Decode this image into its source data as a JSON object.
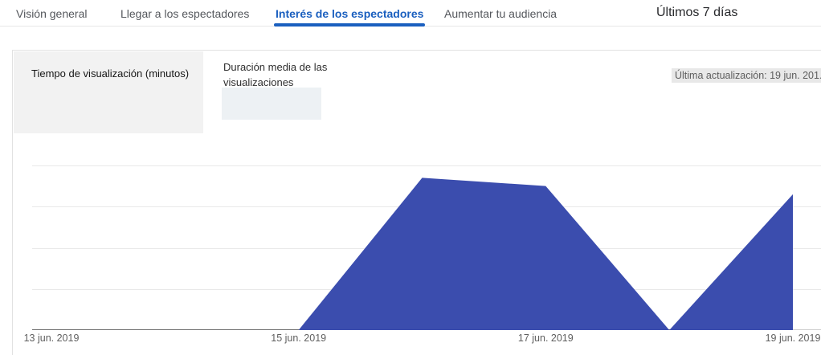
{
  "tabs": {
    "items": [
      {
        "label": "Visión general",
        "active": false
      },
      {
        "label": "Llegar a los espectadores",
        "active": false
      },
      {
        "label": "Interés de los espectadores",
        "active": true
      },
      {
        "label": "Aumentar tu audiencia",
        "active": false
      }
    ],
    "date_range": "Últimos 7 días"
  },
  "metrics": {
    "primary_label": "Tiempo de visualización (minutos)",
    "secondary_label": "Duración media de las visualizaciones",
    "last_update": "Última actualización: 19 jun. 201."
  },
  "colors": {
    "accent_blue": "#1a5fbf",
    "area_fill": "#3b4dae",
    "gridline": "#e9e9e9",
    "axis_line": "#6f6f6f",
    "selected_metric_bg": "#f2f2f2",
    "skeleton_bg": "#edf1f4",
    "last_update_bg": "#e8e8e8"
  },
  "chart_data": {
    "type": "area",
    "title": "Tiempo de visualización (minutos)",
    "x": [
      "13 jun. 2019",
      "14 jun. 2019",
      "15 jun. 2019",
      "16 jun. 2019",
      "17 jun. 2019",
      "18 jun. 2019",
      "19 jun. 2019"
    ],
    "values": [
      0,
      0,
      0,
      3.7,
      3.5,
      0,
      3.3
    ],
    "unit": "gridline intervals (y-axis tick labels not visible in view)",
    "x_tick_labels": [
      "13 jun. 2019",
      "15 jun. 2019",
      "17 jun. 2019",
      "19 jun. 2019"
    ],
    "xlabel": "",
    "ylabel": "",
    "ylim": [
      0,
      4.8
    ],
    "gridline_values": [
      1,
      2,
      3,
      4
    ],
    "grid": "horizontal",
    "legend": "none",
    "area_color": "#3b4dae"
  }
}
